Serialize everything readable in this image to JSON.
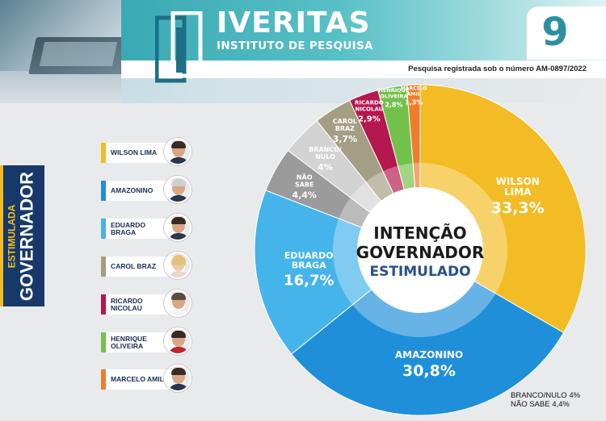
{
  "brand": {
    "name": "IVERITAS",
    "subtitle": "INSTITUTO DE PESQUISA"
  },
  "page_number": "9",
  "registry": "Pesquisa registrada sob o número AM-0897/2022",
  "side_label": {
    "small": "ESTIMULADA",
    "big": "GOVERNADOR"
  },
  "candidates": [
    {
      "name": "WILSON LIMA",
      "color": "#f3bc24"
    },
    {
      "name": "AMAZONINO",
      "color": "#1f8fd9"
    },
    {
      "name": "EDUARDO BRAGA",
      "color": "#45b4ea"
    },
    {
      "name": "CAROL BRAZ",
      "color": "#a49e84"
    },
    {
      "name": "RICARDO NICOLAU",
      "color": "#b5174f"
    },
    {
      "name": "HENRIQUE OLIVEIRA",
      "color": "#73c14b"
    },
    {
      "name": "MARCELO AMIL",
      "color": "#ee7d2b"
    }
  ],
  "center": {
    "line1": "INTENÇÃO",
    "line2": "GOVERNADOR",
    "line3": "ESTIMULADO"
  },
  "footnote": {
    "line1": "BRANCO/NULO 4%",
    "line2": "NÃO SABE 4,4%"
  },
  "chart_data": {
    "type": "pie",
    "title": "INTENÇÃO GOVERNADOR ESTIMULADO",
    "slices": [
      {
        "name": "WILSON LIMA",
        "label": "WILSON LIMA",
        "value": 33.3,
        "display": "33,3%",
        "color": "#f3bc24"
      },
      {
        "name": "AMAZONINO",
        "label": "AMAZONINO",
        "value": 30.8,
        "display": "30,8%",
        "color": "#1f8fd9"
      },
      {
        "name": "EDUARDO BRAGA",
        "label": "EDUARDO BRAGA",
        "value": 16.7,
        "display": "16,7%",
        "color": "#45b4ea"
      },
      {
        "name": "NÃO SABE",
        "label": "NÃO SABE",
        "value": 4.4,
        "display": "4,4%",
        "color": "#9b9b9b"
      },
      {
        "name": "BRANCO/NULO",
        "label": "BRANCO/ NULO",
        "value": 4.0,
        "display": "4%",
        "color": "#d3d3d3"
      },
      {
        "name": "CAROL BRAZ",
        "label": "CAROL BRAZ",
        "value": 3.7,
        "display": "3,7%",
        "color": "#a49e84"
      },
      {
        "name": "RICARDO NICOLAU",
        "label": "RICARDO NICOLAU",
        "value": 2.9,
        "display": "2,9%",
        "color": "#b5174f"
      },
      {
        "name": "HENRIQUE OLIVEIRA",
        "label": "HENRIQUE OLIVEIRA",
        "value": 2.8,
        "display": "2,8%",
        "color": "#73c14b"
      },
      {
        "name": "MARCELO AMIL",
        "label": "MARCELO AMIL",
        "value": 1.3,
        "display": "1,3%",
        "color": "#ee7d2b"
      }
    ]
  }
}
